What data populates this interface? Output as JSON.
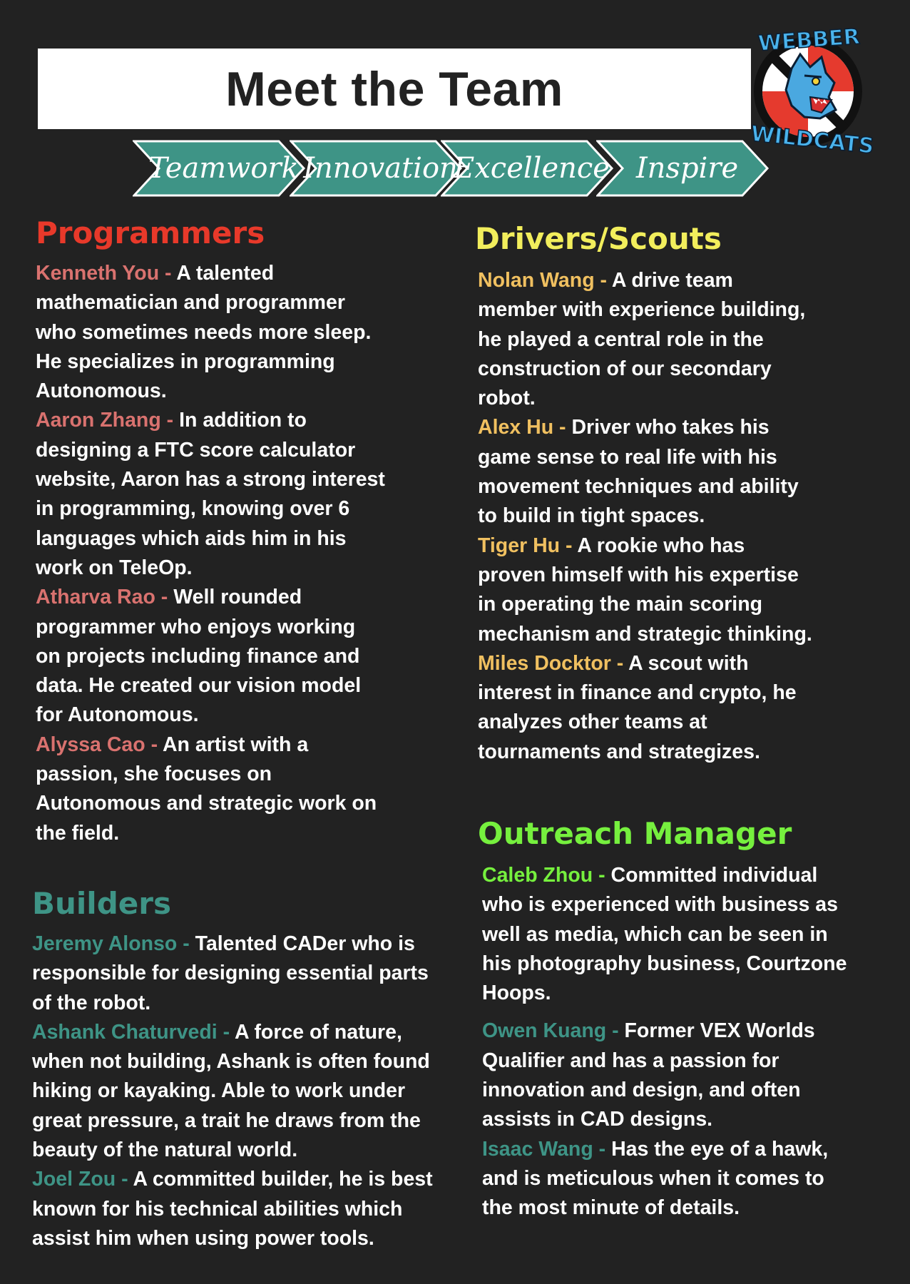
{
  "header": {
    "title": "Meet the Team"
  },
  "values": [
    "Teamwork",
    "Innovation",
    "Excellence",
    "Inspire"
  ],
  "logo": {
    "top_text": "WEBBER",
    "bottom_text": "WILDCATS"
  },
  "colors": {
    "background": "#222222",
    "chevron": "#3e9486",
    "programmers": "#e8392a",
    "drivers": "#f2ee5c",
    "builders": "#3e9486",
    "outreach": "#76f03e"
  },
  "programmers": {
    "heading": "Programmers",
    "members": [
      {
        "name": "Kenneth You - ",
        "bio": "A talented mathematician and programmer who sometimes needs more sleep. He specializes in programming Autonomous."
      },
      {
        "name": "Aaron Zhang - ",
        "bio": "In addition to designing a FTC score calculator website, Aaron has a strong interest in programming, knowing over 6 languages which aids him in his work on TeleOp."
      },
      {
        "name": "Atharva Rao - ",
        "bio": "Well rounded programmer who enjoys working on projects including finance and data. He created our vision model for Autonomous."
      },
      {
        "name": "Alyssa Cao - ",
        "bio": "An artist with a passion, she focuses on Autonomous and strategic work on the field."
      }
    ]
  },
  "builders": {
    "heading": "Builders",
    "members": [
      {
        "name": "Jeremy Alonso - ",
        "bio": "Talented CADer who is responsible for designing essential parts of the robot."
      },
      {
        "name": "Ashank Chaturvedi - ",
        "bio": "A force of nature, when not building, Ashank is often found hiking or kayaking. Able to work under great pressure, a trait he draws from the beauty of the natural world."
      },
      {
        "name": "Joel Zou - ",
        "bio": "A committed builder, he is best known for his technical abilities which assist him when using power tools."
      }
    ]
  },
  "drivers": {
    "heading": "Drivers/Scouts",
    "members": [
      {
        "name": "Nolan Wang - ",
        "bio": "A drive team member with experience building, he played a central role in the construction of our secondary robot."
      },
      {
        "name": "Alex Hu - ",
        "bio": "Driver who takes his game sense to real life with his movement techniques and ability to build in tight spaces."
      },
      {
        "name": "Tiger Hu - ",
        "bio": "A rookie who has proven himself with his expertise in operating the main scoring mechanism and strategic thinking."
      },
      {
        "name": "Miles Docktor - ",
        "bio": "A scout with interest in finance and crypto, he analyzes other teams at tournaments and  strategizes."
      }
    ]
  },
  "outreach": {
    "heading": "Outreach Manager",
    "members": [
      {
        "name": "Caleb Zhou - ",
        "bio": "Committed individual who is experienced with business as well as media, which can be seen in his photography business, Courtzone Hoops."
      }
    ]
  },
  "outreach_builders": {
    "members": [
      {
        "name": "Owen Kuang - ",
        "bio": "Former VEX Worlds Qualifier and has a passion for innovation and design, and often assists in CAD designs."
      },
      {
        "name": "Isaac Wang - ",
        "bio": " Has the eye of a hawk, and is meticulous when it comes to the most minute of details."
      }
    ]
  }
}
